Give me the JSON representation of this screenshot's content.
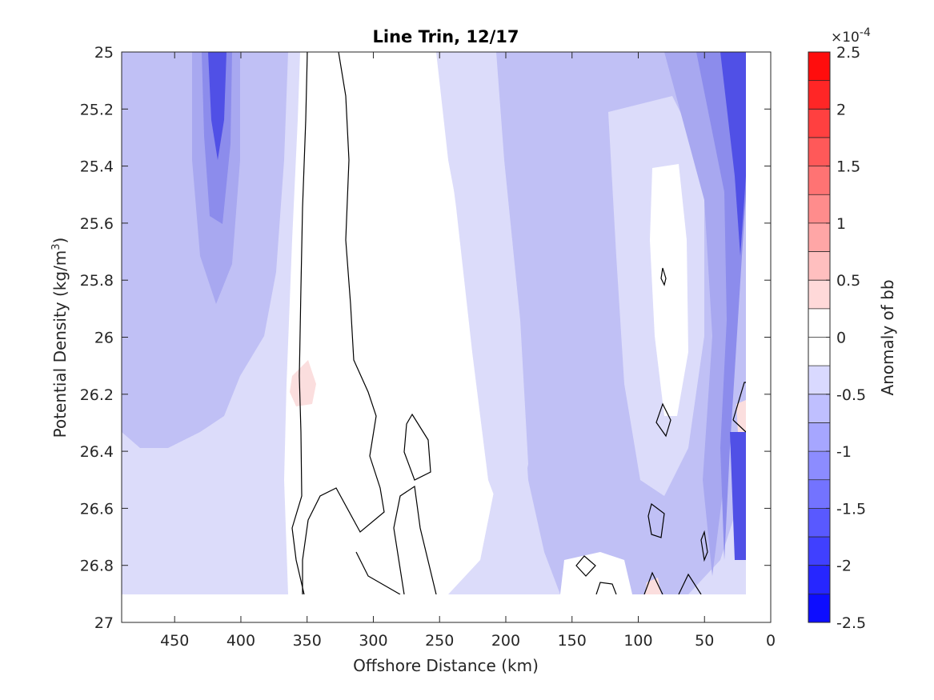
{
  "chart_data": {
    "type": "contour",
    "title": "Line Trin, 12/17",
    "xlabel": "Offshore Distance (km)",
    "ylabel_main": "Potential Density (kg/m",
    "ylabel_sup": "3",
    "ylabel_close": ")",
    "xlim": [
      490,
      0
    ],
    "ylim": [
      25,
      27
    ],
    "x_ticks": [
      450,
      400,
      350,
      300,
      250,
      200,
      150,
      100,
      50,
      0
    ],
    "x_tick_labels": [
      "450",
      "400",
      "350",
      "300",
      "250",
      "200",
      "150",
      "100",
      "50",
      "0"
    ],
    "y_ticks": [
      25,
      25.2,
      25.4,
      25.6,
      25.8,
      26,
      26.2,
      26.4,
      26.6,
      26.8,
      27
    ],
    "y_tick_labels": [
      "25",
      "25.2",
      "25.4",
      "25.6",
      "25.8",
      "26",
      "26.2",
      "26.4",
      "26.6",
      "26.8",
      "27"
    ],
    "data_extent": {
      "x": [
        490,
        18
      ],
      "y": [
        25,
        26.9
      ]
    },
    "contour_levels": [
      -2.5,
      -2.25,
      -2,
      -1.75,
      -1.5,
      -1.25,
      -1,
      -0.75,
      -0.5,
      -0.25,
      0,
      0.25,
      0.5,
      0.75,
      1,
      1.25,
      1.5,
      1.75,
      2,
      2.25,
      2.5
    ],
    "colorbar": {
      "label": "Anomaly of bb",
      "exponent_base": "×10",
      "exponent_power": "-4",
      "range": [
        -2.5,
        2.5
      ],
      "ticks": [
        2.5,
        2,
        1.5,
        1,
        0.5,
        0,
        -0.5,
        -1,
        -1.5,
        -2,
        -2.5
      ],
      "tick_labels": [
        "2.5",
        "2",
        "1.5",
        "1",
        "0.5",
        "0",
        "-0.5",
        "-1",
        "-1.5",
        "-2",
        "-2.5"
      ],
      "colormap": "blue-white-red",
      "color_min": "#0000ff",
      "color_mid": "#ffffff",
      "color_max": "#ff0000"
    },
    "zero_contour_color": "#000000",
    "grid": false
  }
}
